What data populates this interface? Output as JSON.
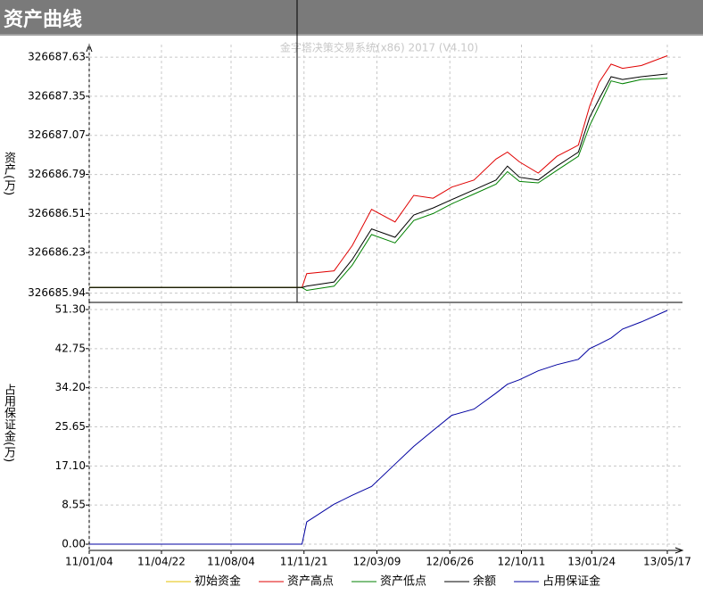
{
  "window": {
    "title": "资产曲线",
    "watermark": "金字塔决策交易系统(x86) 2017 (V4.10)"
  },
  "chart_data": [
    {
      "type": "line",
      "ylabel": "资产(万)",
      "grid": true,
      "x": [
        "11/01/04",
        "11/11/18",
        "11/11/25",
        "12/01/05",
        "12/02/01",
        "12/03/01",
        "12/04/05",
        "12/05/03",
        "12/06/01",
        "12/06/29",
        "12/08/01",
        "12/09/03",
        "12/09/20",
        "12/10/08",
        "12/11/05",
        "12/12/03",
        "13/01/04",
        "13/01/21",
        "13/02/04",
        "13/02/22",
        "13/03/11",
        "13/04/08",
        "13/05/17"
      ],
      "xlim": [
        "11/01/04",
        "13/05/17"
      ],
      "ylim": [
        326685.88,
        326687.72
      ],
      "yticks": [
        326685.94,
        326686.23,
        326686.51,
        326686.79,
        326687.07,
        326687.35,
        326687.63
      ],
      "series": [
        {
          "name": "初始资金",
          "color": "#e6c000",
          "values": [
            326685.98,
            326685.98,
            null,
            null,
            null,
            null,
            null,
            null,
            null,
            null,
            null,
            null,
            null,
            null,
            null,
            null,
            null,
            null,
            null,
            null,
            null,
            null,
            null
          ]
        },
        {
          "name": "资产高点",
          "color": "#e00000",
          "values": [
            326685.98,
            326685.98,
            326686.08,
            326686.1,
            326686.28,
            326686.54,
            326686.45,
            326686.64,
            326686.62,
            326686.7,
            326686.75,
            326686.9,
            326686.95,
            326686.88,
            326686.8,
            326686.92,
            326687.0,
            326687.28,
            326687.45,
            326687.58,
            326687.55,
            326687.57,
            326687.64
          ]
        },
        {
          "name": "资产低点",
          "color": "#008000",
          "values": [
            326685.98,
            326685.98,
            326685.96,
            326685.99,
            326686.14,
            326686.36,
            326686.3,
            326686.46,
            326686.51,
            326686.58,
            326686.65,
            326686.72,
            326686.81,
            326686.74,
            326686.73,
            326686.82,
            326686.92,
            326687.14,
            326687.28,
            326687.46,
            326687.44,
            326687.47,
            326687.48
          ]
        },
        {
          "name": "余额",
          "color": "#000000",
          "values": [
            326685.98,
            326685.98,
            326685.99,
            326686.02,
            326686.18,
            326686.4,
            326686.34,
            326686.5,
            326686.55,
            326686.61,
            326686.68,
            326686.75,
            326686.85,
            326686.77,
            326686.75,
            326686.85,
            326686.95,
            326687.2,
            326687.33,
            326687.49,
            326687.47,
            326687.49,
            326687.51
          ]
        }
      ]
    },
    {
      "type": "line",
      "ylabel": "占用保证金(万)",
      "grid": true,
      "x": [
        "11/01/04",
        "11/11/18",
        "11/11/25",
        "12/01/05",
        "12/02/01",
        "12/03/01",
        "12/04/05",
        "12/05/03",
        "12/06/01",
        "12/06/29",
        "12/08/01",
        "12/09/03",
        "12/09/20",
        "12/10/08",
        "12/11/05",
        "12/12/03",
        "13/01/04",
        "13/01/21",
        "13/02/04",
        "13/02/22",
        "13/03/11",
        "13/04/08",
        "13/05/17"
      ],
      "xlim": [
        "11/01/04",
        "13/05/17"
      ],
      "xticks": [
        "11/01/04",
        "11/04/22",
        "11/08/04",
        "11/11/21",
        "12/03/09",
        "12/06/26",
        "12/10/11",
        "13/01/24",
        "13/05/17"
      ],
      "ylim": [
        -1.36,
        52.66
      ],
      "yticks": [
        {
          "value": 0,
          "label": "0.00"
        },
        8.55,
        {
          "value": 17.1,
          "label": "17.10"
        },
        25.65,
        {
          "value": 34.2,
          "label": "34.20"
        },
        42.75,
        {
          "value": 51.3,
          "label": "51.30"
        }
      ],
      "series": [
        {
          "name": "占用保证金",
          "color": "#0000a0",
          "values": [
            0,
            0,
            4.86,
            8.74,
            10.69,
            12.63,
            17.49,
            21.37,
            24.87,
            28.18,
            29.54,
            33.03,
            34.98,
            35.95,
            37.89,
            39.25,
            40.42,
            42.75,
            43.72,
            45.08,
            47.02,
            48.58,
            51.1
          ]
        }
      ]
    }
  ]
}
